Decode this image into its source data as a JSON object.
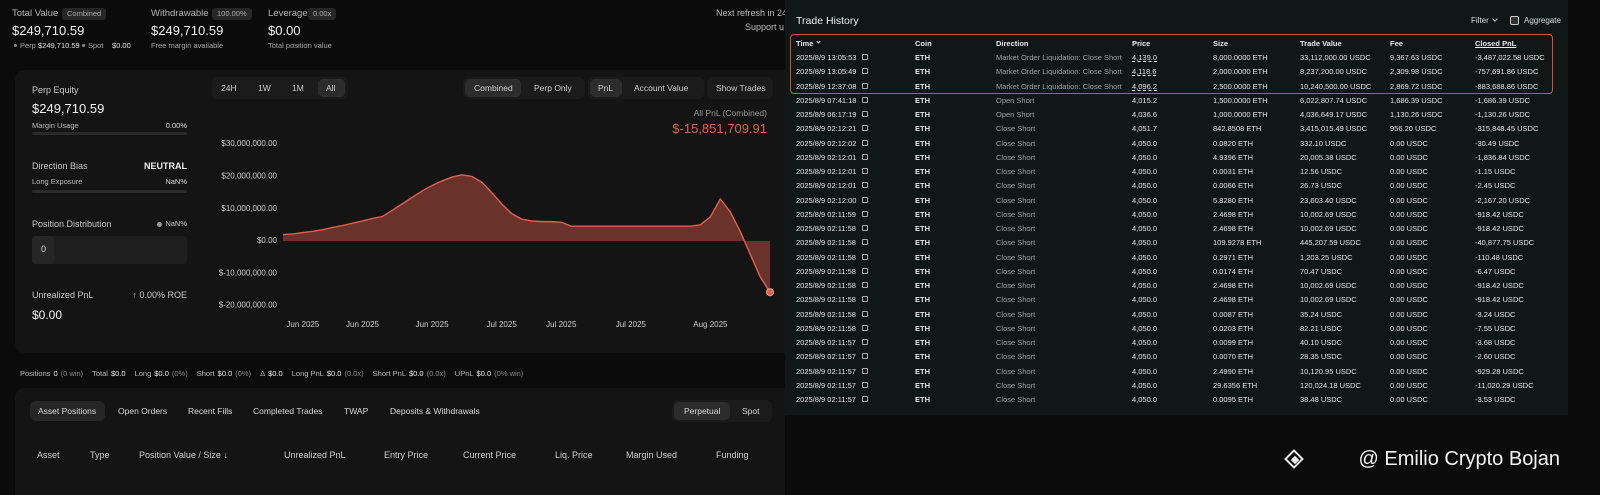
{
  "header": {
    "stats": [
      {
        "label": "Total Value",
        "badge": "Combined",
        "value": "$249,710.59",
        "sub": [
          {
            "label": "Perp",
            "value": "$249,710.59"
          },
          {
            "label": "Spot",
            "value": "$0.00"
          }
        ]
      },
      {
        "label": "Withdrawable",
        "badge": "100.00%",
        "value": "$249,710.59",
        "note": "Free margin available"
      },
      {
        "label": "Leverage",
        "badge": "0.00x",
        "value": "$0.00",
        "note": "Total position value"
      }
    ],
    "refresh": "Next refresh in 24",
    "support": "Support u"
  },
  "summary": {
    "perp_equity_label": "Perp Equity",
    "perp_equity": "$249,710.59",
    "margin_usage_label": "Margin Usage",
    "margin_usage": "0.00%",
    "direction_bias_label": "Direction Bias",
    "direction_bias": "NEUTRAL",
    "long_exposure_label": "Long Exposure",
    "long_exposure": "NaN%",
    "position_distribution_label": "Position Distribution",
    "position_distribution": "NaN%",
    "position_count": "0",
    "unrealized_pnl_label": "Unrealized PnL",
    "roe": "↑ 0.00% ROE",
    "unrealized_pnl": "$0.00"
  },
  "chart_controls": {
    "ranges": [
      "24H",
      "1W",
      "1M",
      "All"
    ],
    "views": [
      "Combined",
      "Perp Only"
    ],
    "metrics": [
      "PnL",
      "Account Value"
    ],
    "show_trades": "Show Trades",
    "pnl_label": "All PnL (Combined)",
    "pnl_value": "$-15,851,709.91"
  },
  "chart_data": {
    "type": "area",
    "categories": [
      null,
      null,
      "Jun 2025",
      null,
      null,
      null,
      null,
      null,
      "Jun 2025",
      null,
      null,
      null,
      null,
      null,
      null,
      "Jun 2025",
      null,
      null,
      null,
      null,
      null,
      null,
      "Jul 2025",
      null,
      null,
      null,
      null,
      null,
      "Jul 2025",
      null,
      null,
      null,
      null,
      null,
      null,
      "Jul 2025",
      null,
      null,
      null,
      null,
      null,
      null,
      null,
      "Aug 2025",
      null,
      null,
      null,
      null,
      null,
      null
    ],
    "series": [
      {
        "name": "PnL",
        "color": "#e0604f",
        "values": [
          2000000,
          2200000,
          2600000,
          3000000,
          3500000,
          4200000,
          4800000,
          5500000,
          6200000,
          7000000,
          7600000,
          9500000,
          11500000,
          13500000,
          15500000,
          17200000,
          18600000,
          19800000,
          20500000,
          20000000,
          18200000,
          15000000,
          11500000,
          8500000,
          6800000,
          6200000,
          6000000,
          6000000,
          5800000,
          4600000,
          4600000,
          4600000,
          4600000,
          4600000,
          4600000,
          4600000,
          4600000,
          4600000,
          4600000,
          4600000,
          4600000,
          4600000,
          5000000,
          7500000,
          13000000,
          9000000,
          3000000,
          -4000000,
          -11000000,
          -15851710
        ]
      }
    ],
    "ylim": [
      -25000000,
      35000000
    ],
    "yticks": [
      {
        "value": 30000000,
        "label": "$30,000,000.00"
      },
      {
        "value": 20000000,
        "label": "$20,000,000.00"
      },
      {
        "value": 10000000,
        "label": "$10,000,000.00"
      },
      {
        "value": 0,
        "label": "$0.00"
      },
      {
        "value": -10000000,
        "label": "$-10,000,000.00"
      },
      {
        "value": -20000000,
        "label": "$-20,000,000.00"
      }
    ],
    "grid": false
  },
  "positions_bar": [
    {
      "label": "Positions",
      "value": "0",
      "extra": "(0 win)"
    },
    {
      "label": "Total",
      "value": "$0.0"
    },
    {
      "label": "Long",
      "value": "$0.0",
      "extra": "(0%)"
    },
    {
      "label": "Short",
      "value": "$0.0",
      "extra": "(0%)"
    },
    {
      "label": "Δ",
      "value": "$0.0"
    },
    {
      "label": "Long PnL",
      "value": "$0.0",
      "extra": "(0.0x)"
    },
    {
      "label": "Short PnL",
      "value": "$0.0",
      "extra": "(0.0x)"
    },
    {
      "label": "UPnL",
      "value": "$0.0",
      "extra": "(0% win)"
    }
  ],
  "tabs": [
    "Asset Positions",
    "Open Orders",
    "Recent Fills",
    "Completed Trades",
    "TWAP",
    "Deposits & Withdrawals"
  ],
  "position_types": [
    "Perpetual",
    "Spot"
  ],
  "position_columns": [
    "Asset",
    "Type",
    "Position Value / Size ↓",
    "Unrealized PnL",
    "Entry Price",
    "Current Price",
    "Liq. Price",
    "Margin Used",
    "Funding"
  ],
  "trade_history": {
    "title": "Trade History",
    "filter": "Filter",
    "aggregate": "Aggregate",
    "columns": [
      "Time",
      "Coin",
      "Direction",
      "Price",
      "Size",
      "Trade Value",
      "Fee",
      "Closed PnL"
    ],
    "rows": [
      [
        "2025/8/9 13:05:53",
        "ETH",
        "Market Order Liquidation: Close Short",
        "4,139.0",
        "8,000.0000 ETH",
        "33,112,000.00 USDC",
        "9,367.63 USDC",
        "-3,487,022.58 USDC"
      ],
      [
        "2025/8/9 13:05:49",
        "ETH",
        "Market Order Liquidation: Close Short",
        "4,118.6",
        "2,000.0000 ETH",
        "8,237,200.00 USDC",
        "2,309.98 USDC",
        "-757,691.86 USDC"
      ],
      [
        "2025/8/9 12:37:08",
        "ETH",
        "Market Order Liquidation: Close Short",
        "4,096.2",
        "2,500.0000 ETH",
        "10,240,500.00 USDC",
        "2,869.72 USDC",
        "-883,688.86 USDC"
      ],
      [
        "2025/8/9 07:41:18",
        "ETH",
        "Open Short",
        "4,015.2",
        "1,500.0000 ETH",
        "6,022,807.74 USDC",
        "1,686.39 USDC",
        "-1,686.39 USDC"
      ],
      [
        "2025/8/9 06:17:19",
        "ETH",
        "Open Short",
        "4,036.6",
        "1,000.0000 ETH",
        "4,036,649.17 USDC",
        "1,130.26 USDC",
        "-1,130.26 USDC"
      ],
      [
        "2025/8/9 02:12:21",
        "ETH",
        "Close Short",
        "4,051.7",
        "842.8508 ETH",
        "3,415,015.49 USDC",
        "956.20 USDC",
        "-315,848.45 USDC"
      ],
      [
        "2025/8/9 02:12:02",
        "ETH",
        "Close Short",
        "4,050.0",
        "0.0820 ETH",
        "332.10 USDC",
        "0.00 USDC",
        "-30.49 USDC"
      ],
      [
        "2025/8/9 02:12:01",
        "ETH",
        "Close Short",
        "4,050.0",
        "4.9396 ETH",
        "20,005.38 USDC",
        "0.00 USDC",
        "-1,836.84 USDC"
      ],
      [
        "2025/8/9 02:12:01",
        "ETH",
        "Close Short",
        "4,050.0",
        "0.0031 ETH",
        "12.56 USDC",
        "0.00 USDC",
        "-1.15 USDC"
      ],
      [
        "2025/8/9 02:12:01",
        "ETH",
        "Close Short",
        "4,050.0",
        "0.0066 ETH",
        "26.73 USDC",
        "0.00 USDC",
        "-2.45 USDC"
      ],
      [
        "2025/8/9 02:12:00",
        "ETH",
        "Close Short",
        "4,050.0",
        "5.8280 ETH",
        "23,603.40 USDC",
        "0.00 USDC",
        "-2,167.20 USDC"
      ],
      [
        "2025/8/9 02:11:59",
        "ETH",
        "Close Short",
        "4,050.0",
        "2.4698 ETH",
        "10,002.69 USDC",
        "0.00 USDC",
        "-918.42 USDC"
      ],
      [
        "2025/8/9 02:11:58",
        "ETH",
        "Close Short",
        "4,050.0",
        "2.4698 ETH",
        "10,002.69 USDC",
        "0.00 USDC",
        "-918.42 USDC"
      ],
      [
        "2025/8/9 02:11:58",
        "ETH",
        "Close Short",
        "4,050.0",
        "109.9278 ETH",
        "445,207.59 USDC",
        "0.00 USDC",
        "-40,877.75 USDC"
      ],
      [
        "2025/8/9 02:11:58",
        "ETH",
        "Close Short",
        "4,050.0",
        "0.2971 ETH",
        "1,203.25 USDC",
        "0.00 USDC",
        "-110.48 USDC"
      ],
      [
        "2025/8/9 02:11:58",
        "ETH",
        "Close Short",
        "4,050.0",
        "0.0174 ETH",
        "70.47 USDC",
        "0.00 USDC",
        "-6.47 USDC"
      ],
      [
        "2025/8/9 02:11:58",
        "ETH",
        "Close Short",
        "4,050.0",
        "2.4698 ETH",
        "10,002.69 USDC",
        "0.00 USDC",
        "-918.42 USDC"
      ],
      [
        "2025/8/9 02:11:58",
        "ETH",
        "Close Short",
        "4,050.0",
        "2.4698 ETH",
        "10,002.69 USDC",
        "0.00 USDC",
        "-918.42 USDC"
      ],
      [
        "2025/8/9 02:11:58",
        "ETH",
        "Close Short",
        "4,050.0",
        "0.0087 ETH",
        "35.24 USDC",
        "0.00 USDC",
        "-3.24 USDC"
      ],
      [
        "2025/8/9 02:11:58",
        "ETH",
        "Close Short",
        "4,050.0",
        "0.0203 ETH",
        "82.21 USDC",
        "0.00 USDC",
        "-7.55 USDC"
      ],
      [
        "2025/8/9 02:11:57",
        "ETH",
        "Close Short",
        "4,050.0",
        "0.0099 ETH",
        "40.10 USDC",
        "0.00 USDC",
        "-3.68 USDC"
      ],
      [
        "2025/8/9 02:11:57",
        "ETH",
        "Close Short",
        "4,050.0",
        "0.0070 ETH",
        "28.35 USDC",
        "0.00 USDC",
        "-2.60 USDC"
      ],
      [
        "2025/8/9 02:11:57",
        "ETH",
        "Close Short",
        "4,050.0",
        "2.4990 ETH",
        "10,120.95 USDC",
        "0.00 USDC",
        "-929.28 USDC"
      ],
      [
        "2025/8/9 02:11:57",
        "ETH",
        "Close Short",
        "4,050.0",
        "29.6356 ETH",
        "120,024.18 USDC",
        "0.00 USDC",
        "-11,020.29 USDC"
      ],
      [
        "2025/8/9 02:11:57",
        "ETH",
        "Close Short",
        "4,050.0",
        "0.0095 ETH",
        "38.48 USDC",
        "0.00 USDC",
        "-3.53 USDC"
      ]
    ]
  },
  "watermark": "@ Emilio Crypto Bojan"
}
